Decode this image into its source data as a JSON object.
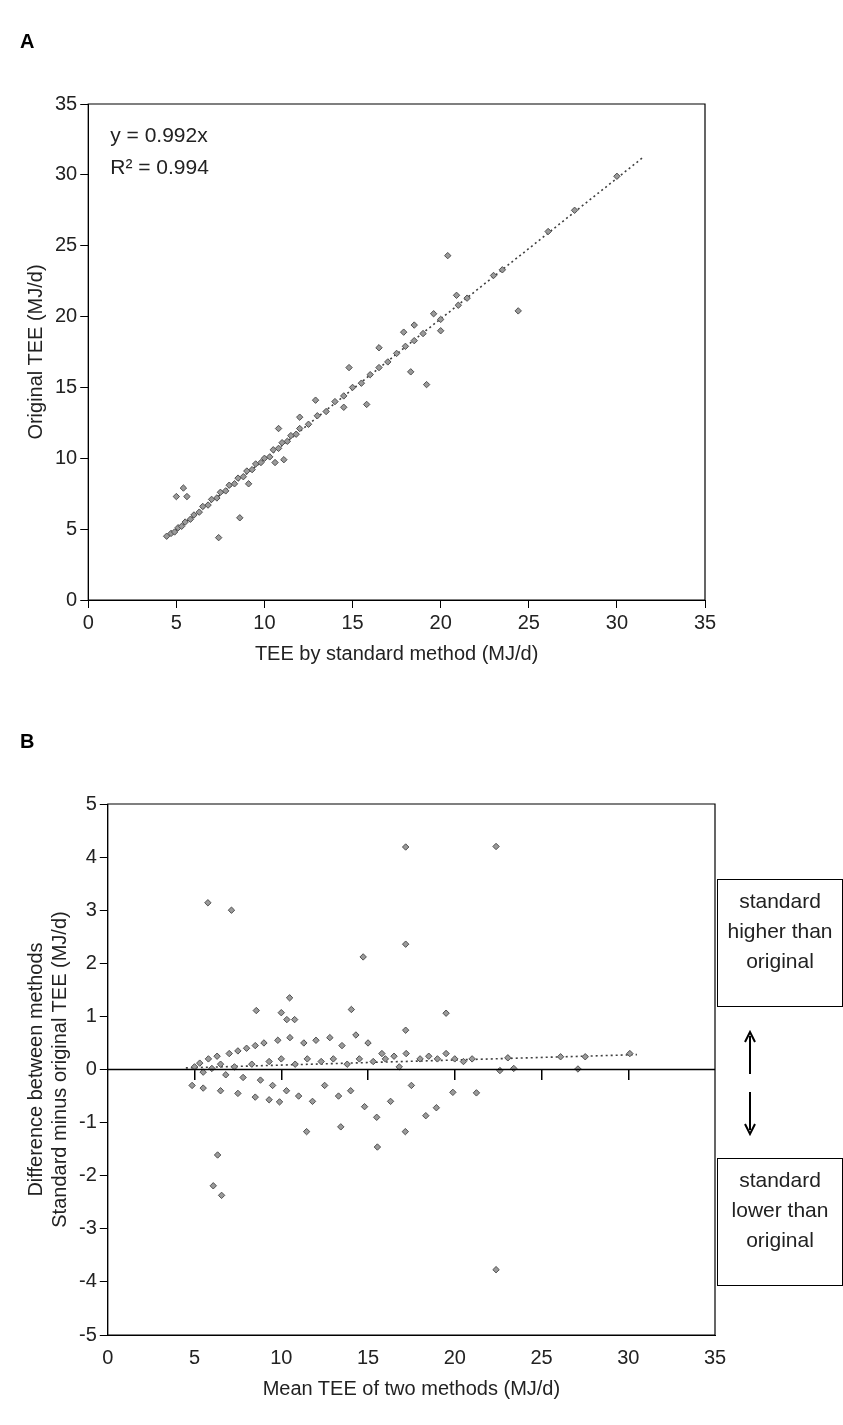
{
  "chart_data": [
    {
      "type": "scatter",
      "title": "A",
      "xlabel": "TEE by standard method (MJ/d)",
      "ylabel": "Original TEE (MJ/d)",
      "xlim": [
        0,
        35
      ],
      "ylim": [
        0,
        35
      ],
      "xticks": [
        0,
        5,
        10,
        15,
        20,
        25,
        30,
        35
      ],
      "yticks": [
        0,
        5,
        10,
        15,
        20,
        25,
        30,
        35
      ],
      "grid": false,
      "legend": false,
      "marker": "diamond",
      "annotations": [
        "y = 0.992x",
        "R² = 0.994"
      ],
      "series": [
        {
          "color": "#505050",
          "x": [
            4.45,
            4.7,
            4.9,
            5.1,
            5.3,
            5.5,
            5.8,
            6.0,
            6.3,
            6.5,
            6.8,
            7.0,
            7.3,
            7.5,
            7.8,
            8.0,
            8.3,
            8.5,
            8.8,
            9.0,
            9.3,
            9.5,
            9.8,
            10.0,
            10.3,
            10.5,
            10.8,
            11.0,
            11.3,
            11.5,
            11.8,
            12.0,
            12.5,
            13.0,
            13.5,
            14.0,
            14.5,
            15.0,
            15.5,
            16.0,
            16.5,
            17.0,
            17.5,
            18.0,
            18.5,
            19.0,
            20.0,
            21.0,
            21.5,
            23.0,
            23.5,
            26.1,
            27.6,
            30.0,
            10.8,
            12.0,
            12.9,
            16.5,
            17.9,
            18.5,
            19.6,
            20.9,
            9.1,
            10.6,
            11.1,
            14.5,
            20.0,
            5.0,
            5.4,
            5.6,
            7.4,
            8.6,
            20.4,
            24.4,
            19.2,
            18.3,
            15.8,
            14.8
          ],
          "values": [
            4.5,
            4.7,
            4.8,
            5.1,
            5.2,
            5.5,
            5.7,
            6.0,
            6.2,
            6.6,
            6.7,
            7.1,
            7.2,
            7.6,
            7.7,
            8.1,
            8.2,
            8.6,
            8.7,
            9.1,
            9.2,
            9.6,
            9.7,
            10.0,
            10.1,
            10.6,
            10.7,
            11.1,
            11.2,
            11.6,
            11.7,
            12.1,
            12.4,
            13.0,
            13.3,
            14.0,
            14.4,
            15.0,
            15.3,
            15.9,
            16.4,
            16.8,
            17.4,
            17.9,
            18.3,
            18.8,
            19.8,
            20.8,
            21.3,
            22.9,
            23.3,
            26.0,
            27.5,
            29.9,
            12.1,
            12.9,
            14.1,
            17.8,
            18.9,
            19.4,
            20.2,
            21.5,
            8.2,
            9.7,
            9.9,
            13.6,
            19.0,
            7.3,
            7.9,
            7.3,
            4.4,
            5.8,
            24.3,
            20.4,
            15.2,
            16.1,
            13.8,
            16.4
          ]
        },
        {
          "type": "line",
          "color": "#404040",
          "line_style": "dotted",
          "marker": "none",
          "x": [
            4.5,
            31.5
          ],
          "values": [
            4.46,
            31.25
          ]
        }
      ]
    },
    {
      "type": "scatter",
      "title": "B",
      "xlabel": "Mean TEE of two methods (MJ/d)",
      "ylabel": "Difference between methods\nStandard minus original TEE (MJ/d)",
      "xlim": [
        0,
        35
      ],
      "ylim": [
        -5,
        5
      ],
      "xticks": [
        0,
        5,
        10,
        15,
        20,
        25,
        30,
        35
      ],
      "yticks": [
        -5,
        -4,
        -3,
        -2,
        -1,
        0,
        1,
        2,
        3,
        4,
        5
      ],
      "grid": false,
      "legend": false,
      "marker": "diamond",
      "annotations": [
        "standard higher than original",
        "standard lower than original"
      ],
      "ref_lines": [
        {
          "axis": "y",
          "value": 0,
          "color": "#000000"
        }
      ],
      "series": [
        {
          "color": "#505050",
          "x": [
            5.0,
            5.3,
            5.5,
            5.8,
            6.0,
            6.3,
            6.5,
            6.8,
            7.0,
            7.3,
            7.5,
            7.8,
            8.0,
            8.3,
            8.5,
            8.8,
            9.0,
            9.3,
            9.5,
            9.8,
            10.0,
            10.3,
            10.5,
            10.8,
            11.0,
            11.3,
            11.5,
            11.8,
            12.0,
            12.3,
            12.5,
            12.8,
            13.0,
            13.3,
            13.5,
            13.8,
            14.0,
            14.3,
            14.5,
            14.8,
            15.0,
            15.3,
            15.5,
            15.8,
            16.0,
            16.3,
            16.5,
            16.8,
            17.2,
            17.5,
            18.0,
            18.5,
            19.0,
            19.5,
            20.0,
            20.5,
            21.0,
            23.06,
            26.1,
            27.52,
            30.09,
            23.4,
            27.1,
            22.6,
            4.86,
            5.5,
            6.5,
            7.5,
            8.5,
            9.3,
            9.9,
            17.17,
            22.38,
            5.77,
            7.13,
            17.17,
            14.72,
            10.48,
            8.56,
            10.0,
            10.32,
            10.77,
            14.04,
            19.5,
            17.17,
            6.33,
            6.08,
            6.56,
            22.38,
            15.54,
            11.46,
            13.43,
            17.15,
            21.25,
            19.89,
            18.94,
            18.33
          ],
          "values": [
            0.05,
            0.12,
            -0.05,
            0.2,
            0.02,
            0.25,
            0.1,
            -0.1,
            0.3,
            0.05,
            0.35,
            -0.15,
            0.4,
            0.1,
            0.45,
            -0.2,
            0.5,
            0.15,
            -0.3,
            0.55,
            0.2,
            -0.4,
            0.6,
            0.1,
            -0.5,
            0.5,
            0.2,
            -0.6,
            0.55,
            0.15,
            -0.3,
            0.6,
            0.2,
            -0.5,
            0.45,
            0.1,
            -0.4,
            0.65,
            0.2,
            -0.7,
            0.5,
            0.15,
            -0.9,
            0.3,
            0.2,
            -0.6,
            0.25,
            0.05,
            0.3,
            -0.3,
            0.2,
            0.25,
            0.2,
            0.3,
            0.2,
            0.15,
            0.2,
            0.22,
            0.24,
            0.24,
            0.3,
            0.02,
            0.01,
            -0.02,
            -0.3,
            -0.35,
            -0.4,
            -0.45,
            -0.52,
            -0.57,
            -0.61,
            4.19,
            4.2,
            3.14,
            3.0,
            2.36,
            2.12,
            1.35,
            1.11,
            1.07,
            0.94,
            0.94,
            1.13,
            1.06,
            0.74,
            -1.61,
            -2.19,
            -2.37,
            -3.77,
            -1.46,
            -1.17,
            -1.08,
            -1.17,
            -0.44,
            -0.43,
            -0.72,
            -0.87
          ]
        },
        {
          "type": "line",
          "color": "#404040",
          "line_style": "dotted",
          "marker": "none",
          "x": [
            4.5,
            30.5
          ],
          "values": [
            0.03,
            0.28
          ]
        }
      ]
    }
  ]
}
